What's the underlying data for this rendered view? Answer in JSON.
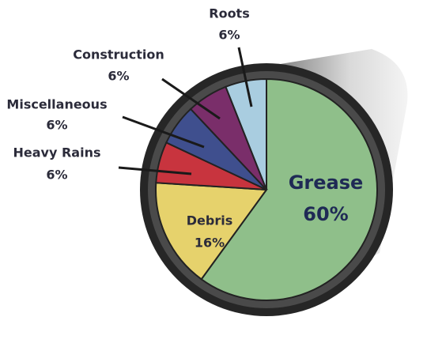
{
  "chart_data": {
    "type": "pie",
    "categories": [
      "Grease",
      "Debris",
      "Heavy Rains",
      "Miscellaneous",
      "Construction",
      "Roots"
    ],
    "values": [
      60,
      16,
      6,
      6,
      6,
      6
    ],
    "value_labels": [
      "60%",
      "16%",
      "6%",
      "6%",
      "6%",
      "6%"
    ],
    "colors": [
      "#8fbf8a",
      "#e6d26c",
      "#c8343e",
      "#3f4f8e",
      "#7a2e6a",
      "#a9cde0"
    ]
  }
}
